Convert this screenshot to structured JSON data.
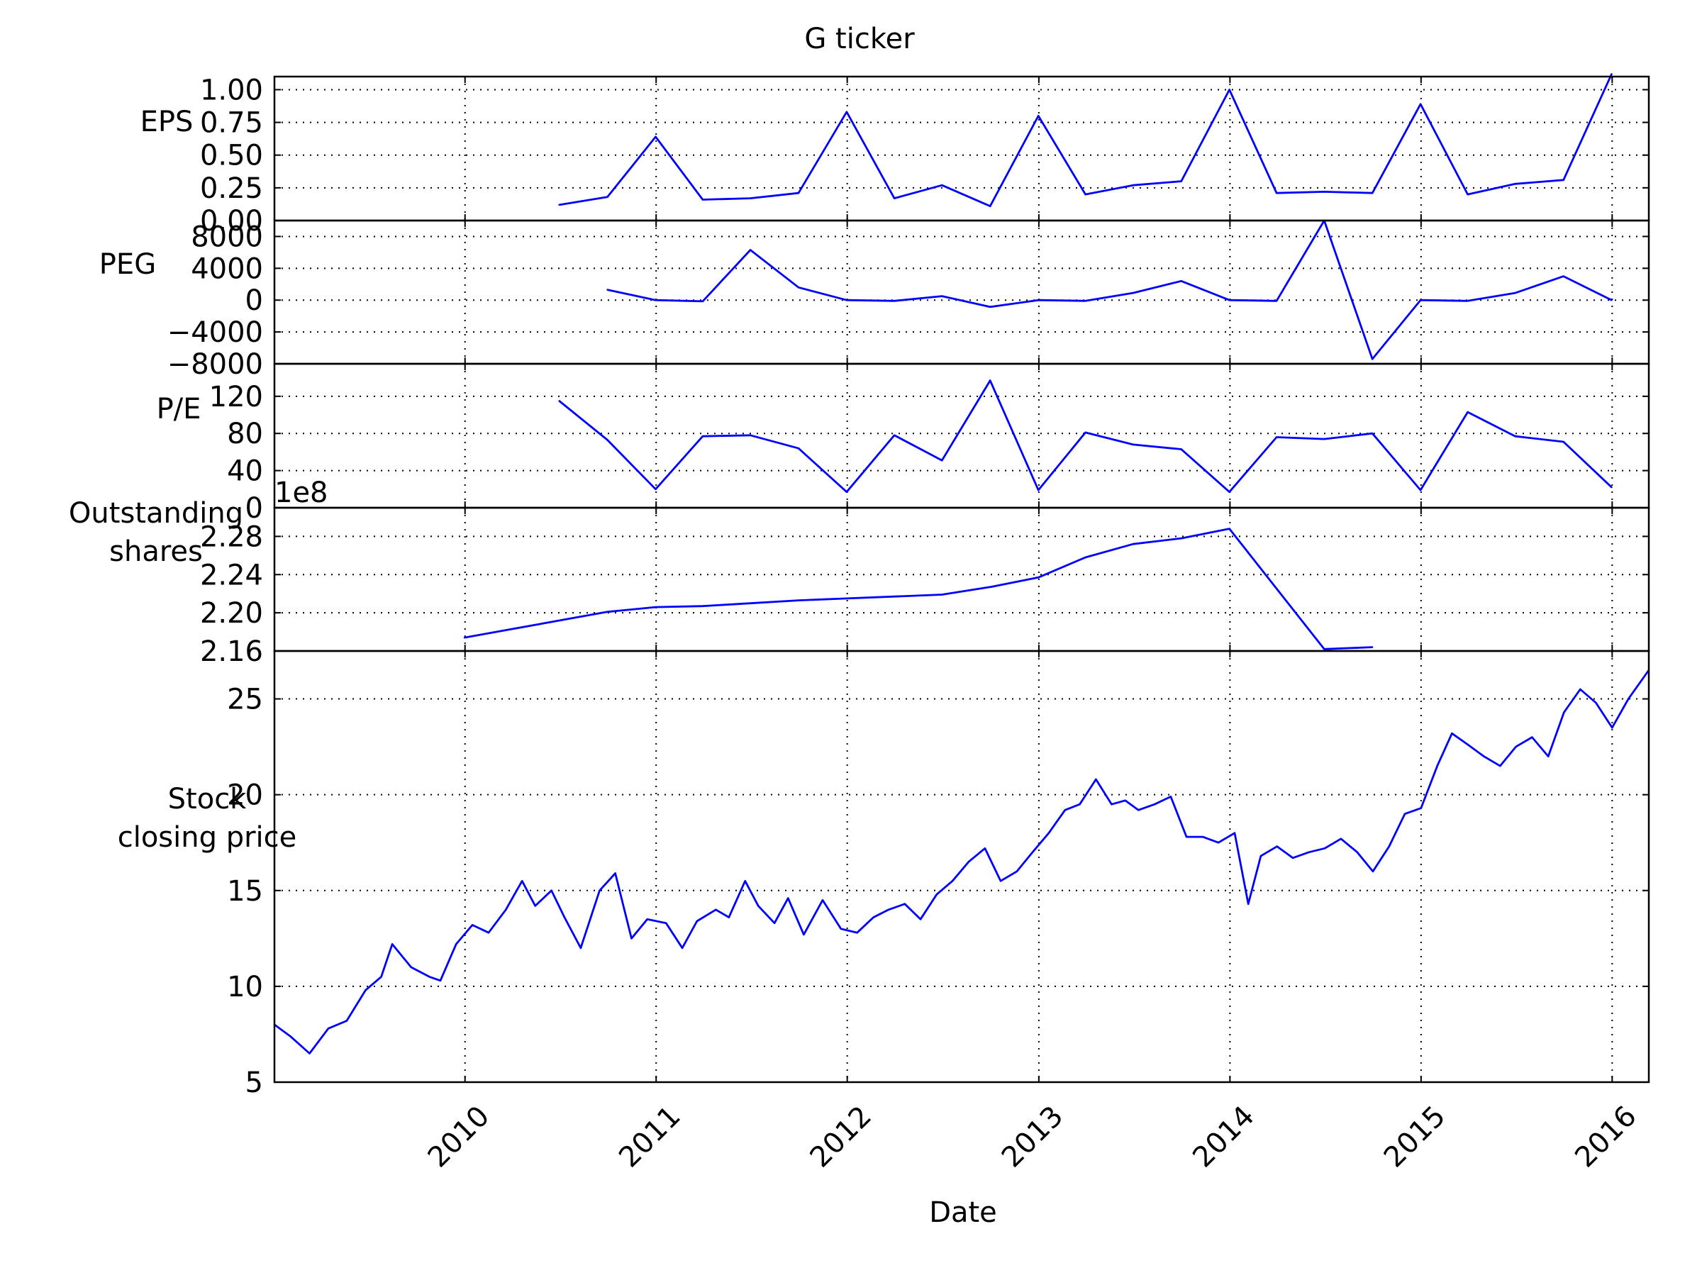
{
  "title": "G ticker",
  "xlabel": "Date",
  "x_axis": {
    "range": [
      "2009-01-02",
      "2016-03-11"
    ],
    "tick_labels": [
      "2010",
      "2011",
      "2012",
      "2013",
      "2014",
      "2015",
      "2016"
    ],
    "tick_dates": [
      "2010-01-01",
      "2011-01-01",
      "2012-01-01",
      "2013-01-01",
      "2014-01-01",
      "2015-01-01",
      "2016-01-01"
    ],
    "tick_label_rotation": -45
  },
  "colors": {
    "line": "#0000ff",
    "grid": "#000000",
    "axes": "#000000"
  },
  "chart_data": [
    {
      "type": "line",
      "ylabel": "EPS",
      "ylim": [
        0.0,
        1.1
      ],
      "yticks": [
        0.0,
        0.25,
        0.5,
        0.75,
        1.0
      ],
      "ytick_labels": [
        "0.00",
        "0.25",
        "0.50",
        "0.75",
        "1.00"
      ],
      "grid": true,
      "series": [
        {
          "x": [
            "2010-06-30",
            "2010-09-30",
            "2010-12-31",
            "2011-03-31",
            "2011-06-30",
            "2011-09-30",
            "2011-12-31",
            "2012-03-31",
            "2012-06-30",
            "2012-09-30",
            "2012-12-31",
            "2013-03-31",
            "2013-06-30",
            "2013-09-30",
            "2013-12-31",
            "2014-03-31",
            "2014-06-30",
            "2014-09-30",
            "2014-12-31",
            "2015-03-31",
            "2015-06-30",
            "2015-09-30",
            "2015-12-31"
          ],
          "values": [
            0.12,
            0.18,
            0.64,
            0.16,
            0.17,
            0.21,
            0.83,
            0.17,
            0.27,
            0.11,
            0.8,
            0.2,
            0.27,
            0.3,
            1.0,
            0.21,
            0.22,
            0.21,
            0.89,
            0.2,
            0.28,
            0.31,
            1.12
          ]
        }
      ]
    },
    {
      "type": "line",
      "ylabel": "PEG",
      "ylim": [
        -8000,
        10000
      ],
      "yticks": [
        -8000,
        -4000,
        0,
        4000,
        8000
      ],
      "ytick_labels": [
        "−8000",
        "−4000",
        "0",
        "4000",
        "8000"
      ],
      "grid": true,
      "series": [
        {
          "x": [
            "2010-09-30",
            "2010-12-31",
            "2011-03-31",
            "2011-06-30",
            "2011-09-30",
            "2011-12-31",
            "2012-03-31",
            "2012-06-30",
            "2012-09-30",
            "2012-12-31",
            "2013-03-31",
            "2013-06-30",
            "2013-09-30",
            "2013-12-31",
            "2014-03-31",
            "2014-06-30",
            "2014-09-30",
            "2014-12-31",
            "2015-03-31",
            "2015-06-30",
            "2015-09-30",
            "2015-12-31"
          ],
          "values": [
            1300,
            0,
            -150,
            6300,
            1600,
            0,
            -100,
            500,
            -850,
            0,
            -100,
            900,
            2400,
            0,
            -100,
            10000,
            -7400,
            0,
            -100,
            900,
            3000,
            0
          ]
        }
      ]
    },
    {
      "type": "line",
      "ylabel": "P/E",
      "ylim": [
        0,
        155
      ],
      "yticks": [
        0,
        40,
        80,
        120
      ],
      "ytick_labels": [
        "0",
        "40",
        "80",
        "120"
      ],
      "grid": true,
      "series": [
        {
          "x": [
            "2010-06-30",
            "2010-09-30",
            "2010-12-31",
            "2011-03-31",
            "2011-06-30",
            "2011-09-30",
            "2011-12-31",
            "2012-03-31",
            "2012-06-30",
            "2012-09-30",
            "2012-12-31",
            "2013-03-31",
            "2013-06-30",
            "2013-09-30",
            "2013-12-31",
            "2014-03-31",
            "2014-06-30",
            "2014-09-30",
            "2014-12-31",
            "2015-03-31",
            "2015-06-30",
            "2015-09-30",
            "2015-12-31"
          ],
          "values": [
            115,
            73,
            20,
            77,
            78,
            64,
            17,
            78,
            51,
            137,
            19,
            81,
            68,
            63,
            17,
            76,
            74,
            80,
            19,
            103,
            77,
            71,
            22
          ]
        }
      ]
    },
    {
      "type": "line",
      "ylabel": "Outstanding\nshares",
      "offset_text": "1e8",
      "ylim": [
        2.16,
        2.31
      ],
      "yticks": [
        2.16,
        2.2,
        2.24,
        2.28
      ],
      "ytick_labels": [
        "2.16",
        "2.20",
        "2.24",
        "2.28"
      ],
      "grid": true,
      "series": [
        {
          "x": [
            "2009-12-31",
            "2010-09-30",
            "2010-12-31",
            "2011-03-31",
            "2011-06-30",
            "2011-09-30",
            "2011-12-31",
            "2012-03-31",
            "2012-06-30",
            "2012-09-30",
            "2012-12-31",
            "2013-03-31",
            "2013-06-30",
            "2013-09-30",
            "2013-12-31",
            "2014-06-30",
            "2014-09-30"
          ],
          "values": [
            2.174,
            2.201,
            2.206,
            2.207,
            2.21,
            2.213,
            2.215,
            2.217,
            2.219,
            2.227,
            2.237,
            2.258,
            2.272,
            2.278,
            2.288,
            2.162,
            2.164
          ]
        }
      ]
    },
    {
      "type": "line",
      "ylabel": "Stock\nclosing price",
      "ylim": [
        5,
        27.5
      ],
      "yticks": [
        5,
        10,
        15,
        20,
        25
      ],
      "ytick_labels": [
        "5",
        "10",
        "15",
        "20",
        "25"
      ],
      "grid": true,
      "series": [
        {
          "x": [
            "2009-01-02",
            "2009-02-01",
            "2009-03-10",
            "2009-04-15",
            "2009-05-20",
            "2009-06-25",
            "2009-07-25",
            "2009-08-15",
            "2009-09-20",
            "2009-10-25",
            "2009-11-15",
            "2009-12-15",
            "2010-01-15",
            "2010-02-15",
            "2010-03-20",
            "2010-04-20",
            "2010-05-15",
            "2010-06-15",
            "2010-07-10",
            "2010-08-10",
            "2010-09-15",
            "2010-10-15",
            "2010-11-15",
            "2010-12-15",
            "2011-01-20",
            "2011-02-20",
            "2011-03-20",
            "2011-04-25",
            "2011-05-20",
            "2011-06-20",
            "2011-07-15",
            "2011-08-15",
            "2011-09-10",
            "2011-10-10",
            "2011-11-15",
            "2011-12-20",
            "2012-01-20",
            "2012-02-20",
            "2012-03-20",
            "2012-04-20",
            "2012-05-20",
            "2012-06-20",
            "2012-07-20",
            "2012-08-20",
            "2012-09-20",
            "2012-10-20",
            "2012-11-20",
            "2012-12-20",
            "2013-01-20",
            "2013-02-20",
            "2013-03-20",
            "2013-04-20",
            "2013-05-20",
            "2013-06-15",
            "2013-07-10",
            "2013-08-10",
            "2013-09-10",
            "2013-10-10",
            "2013-11-10",
            "2013-12-10",
            "2014-01-10",
            "2014-02-05",
            "2014-03-01",
            "2014-04-01",
            "2014-05-01",
            "2014-06-01",
            "2014-07-01",
            "2014-08-01",
            "2014-09-01",
            "2014-10-01",
            "2014-11-01",
            "2014-12-01",
            "2015-01-01",
            "2015-02-01",
            "2015-03-01",
            "2015-04-01",
            "2015-05-01",
            "2015-06-01",
            "2015-07-01",
            "2015-08-01",
            "2015-09-01",
            "2015-10-01",
            "2015-11-01",
            "2015-12-01",
            "2016-01-01",
            "2016-02-01",
            "2016-03-11"
          ],
          "values": [
            8.0,
            7.4,
            6.5,
            7.8,
            8.2,
            9.8,
            10.5,
            12.2,
            11.0,
            10.5,
            10.3,
            12.2,
            13.2,
            12.8,
            14.0,
            15.5,
            14.2,
            15.0,
            13.6,
            12.0,
            15.0,
            15.9,
            12.5,
            13.5,
            13.3,
            12.0,
            13.4,
            14.0,
            13.6,
            15.5,
            14.2,
            13.3,
            14.6,
            12.7,
            14.5,
            13.0,
            12.8,
            13.6,
            14.0,
            14.3,
            13.5,
            14.8,
            15.5,
            16.5,
            17.2,
            15.5,
            16.0,
            17.0,
            18.0,
            19.2,
            19.5,
            20.8,
            19.5,
            19.7,
            19.2,
            19.5,
            19.9,
            17.8,
            17.8,
            17.5,
            18.0,
            14.3,
            16.8,
            17.3,
            16.7,
            17.0,
            17.2,
            17.7,
            17.0,
            16.0,
            17.3,
            19.0,
            19.3,
            21.5,
            23.2,
            22.6,
            22.0,
            21.5,
            22.5,
            23.0,
            22.0,
            24.3,
            25.5,
            24.8,
            23.5,
            25.0,
            26.5
          ]
        }
      ]
    }
  ]
}
